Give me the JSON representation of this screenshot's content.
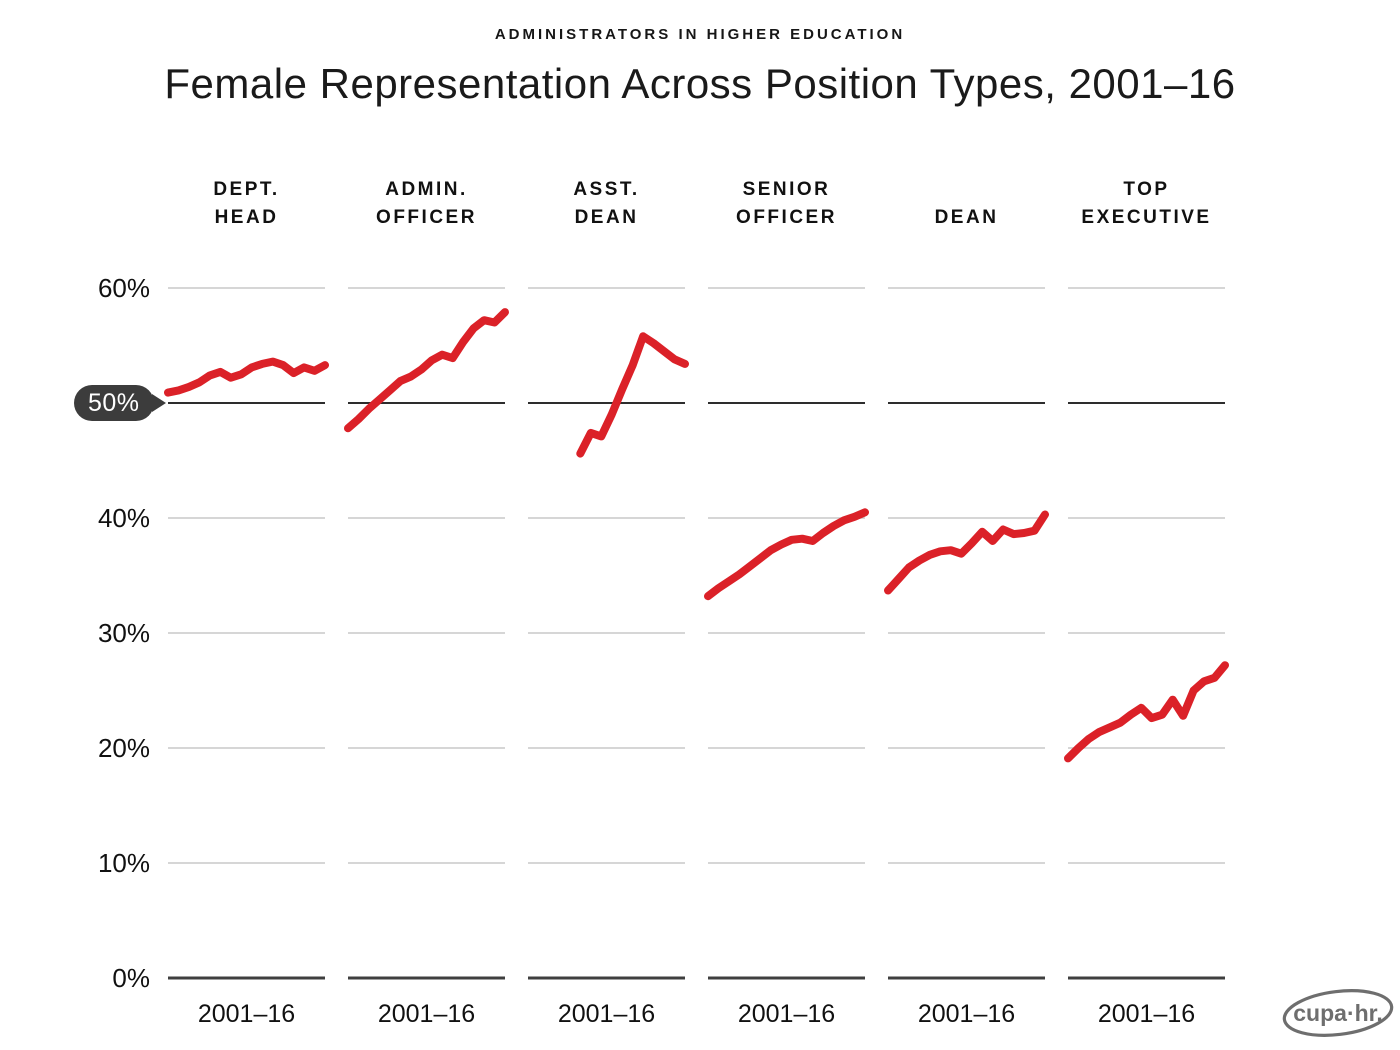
{
  "header": {
    "kicker": "ADMINISTRATORS IN HIGHER EDUCATION",
    "title": "Female Representation Across Position Types, 2001–16"
  },
  "footer": {
    "logo_text": "cupa·hr."
  },
  "colors": {
    "line_red": "#DB2128",
    "grid_light": "#c9c9c9",
    "grid_dark_50": "#2d2d2d",
    "baseline": "#3f3f3f",
    "bubble_bg": "#3c3c3c",
    "bubble_text": "#ffffff",
    "text": "#111111",
    "logo_gray": "#6e6e6e"
  },
  "chart_data": {
    "type": "line",
    "kicker": "ADMINISTRATORS IN HIGHER EDUCATION",
    "title": "Female Representation Across Position Types, 2001–16",
    "layout": "small-multiples, 6 panels, shared y-axis",
    "grid": "horizontal gridlines at 10% intervals; 50% line emphasized dark; 0% baseline dark",
    "legend_position": "none",
    "ylim": [
      0,
      62
    ],
    "x_range": [
      2001,
      2016
    ],
    "x_label": "2001–16",
    "y_ticks": [
      {
        "label": "60%",
        "value": 60,
        "highlighted": false
      },
      {
        "label": "50%",
        "value": 50,
        "highlighted": true
      },
      {
        "label": "40%",
        "value": 40,
        "highlighted": false
      },
      {
        "label": "30%",
        "value": 30,
        "highlighted": false
      },
      {
        "label": "20%",
        "value": 20,
        "highlighted": false
      },
      {
        "label": "10%",
        "value": 10,
        "highlighted": false
      },
      {
        "label": "0%",
        "value": 0,
        "highlighted": false
      }
    ],
    "highlight_value": 50,
    "panels": [
      {
        "label": "DEPT. HEAD",
        "label_lines": [
          "DEPT.",
          "HEAD"
        ],
        "start_year": 2001,
        "values": [
          50.9,
          51.1,
          51.4,
          51.8,
          52.4,
          52.7,
          52.2,
          52.5,
          53.1,
          53.4,
          53.6,
          53.3,
          52.6,
          53.1,
          52.8,
          53.3
        ]
      },
      {
        "label": "ADMIN. OFFICER",
        "label_lines": [
          "ADMIN.",
          "OFFICER"
        ],
        "start_year": 2001,
        "values": [
          47.8,
          48.6,
          49.5,
          50.3,
          51.1,
          51.9,
          52.3,
          52.9,
          53.7,
          54.2,
          53.9,
          55.3,
          56.5,
          57.2,
          57.0,
          57.9
        ]
      },
      {
        "label": "ASST. DEAN",
        "label_lines": [
          "ASST.",
          "DEAN"
        ],
        "start_year": 2006,
        "values": [
          45.6,
          47.4,
          47.1,
          49.0,
          51.2,
          53.3,
          55.8,
          55.2,
          54.5,
          53.8,
          53.4
        ]
      },
      {
        "label": "SENIOR OFFICER",
        "label_lines": [
          "SENIOR",
          "OFFICER"
        ],
        "start_year": 2001,
        "values": [
          33.2,
          33.9,
          34.5,
          35.1,
          35.8,
          36.5,
          37.2,
          37.7,
          38.1,
          38.2,
          38.0,
          38.7,
          39.3,
          39.8,
          40.1,
          40.5
        ]
      },
      {
        "label": "DEAN",
        "label_lines": [
          "DEAN"
        ],
        "start_year": 2001,
        "values": [
          33.7,
          34.7,
          35.7,
          36.3,
          36.8,
          37.1,
          37.2,
          36.9,
          37.8,
          38.8,
          38.0,
          39.0,
          38.6,
          38.7,
          38.9,
          40.3
        ]
      },
      {
        "label": "TOP EXECUTIVE",
        "label_lines": [
          "TOP",
          "EXECUTIVE"
        ],
        "start_year": 2001,
        "values": [
          19.1,
          20.0,
          20.8,
          21.4,
          21.8,
          22.2,
          22.9,
          23.5,
          22.6,
          22.9,
          24.2,
          22.8,
          25.0,
          25.8,
          26.1,
          27.2
        ]
      }
    ]
  }
}
